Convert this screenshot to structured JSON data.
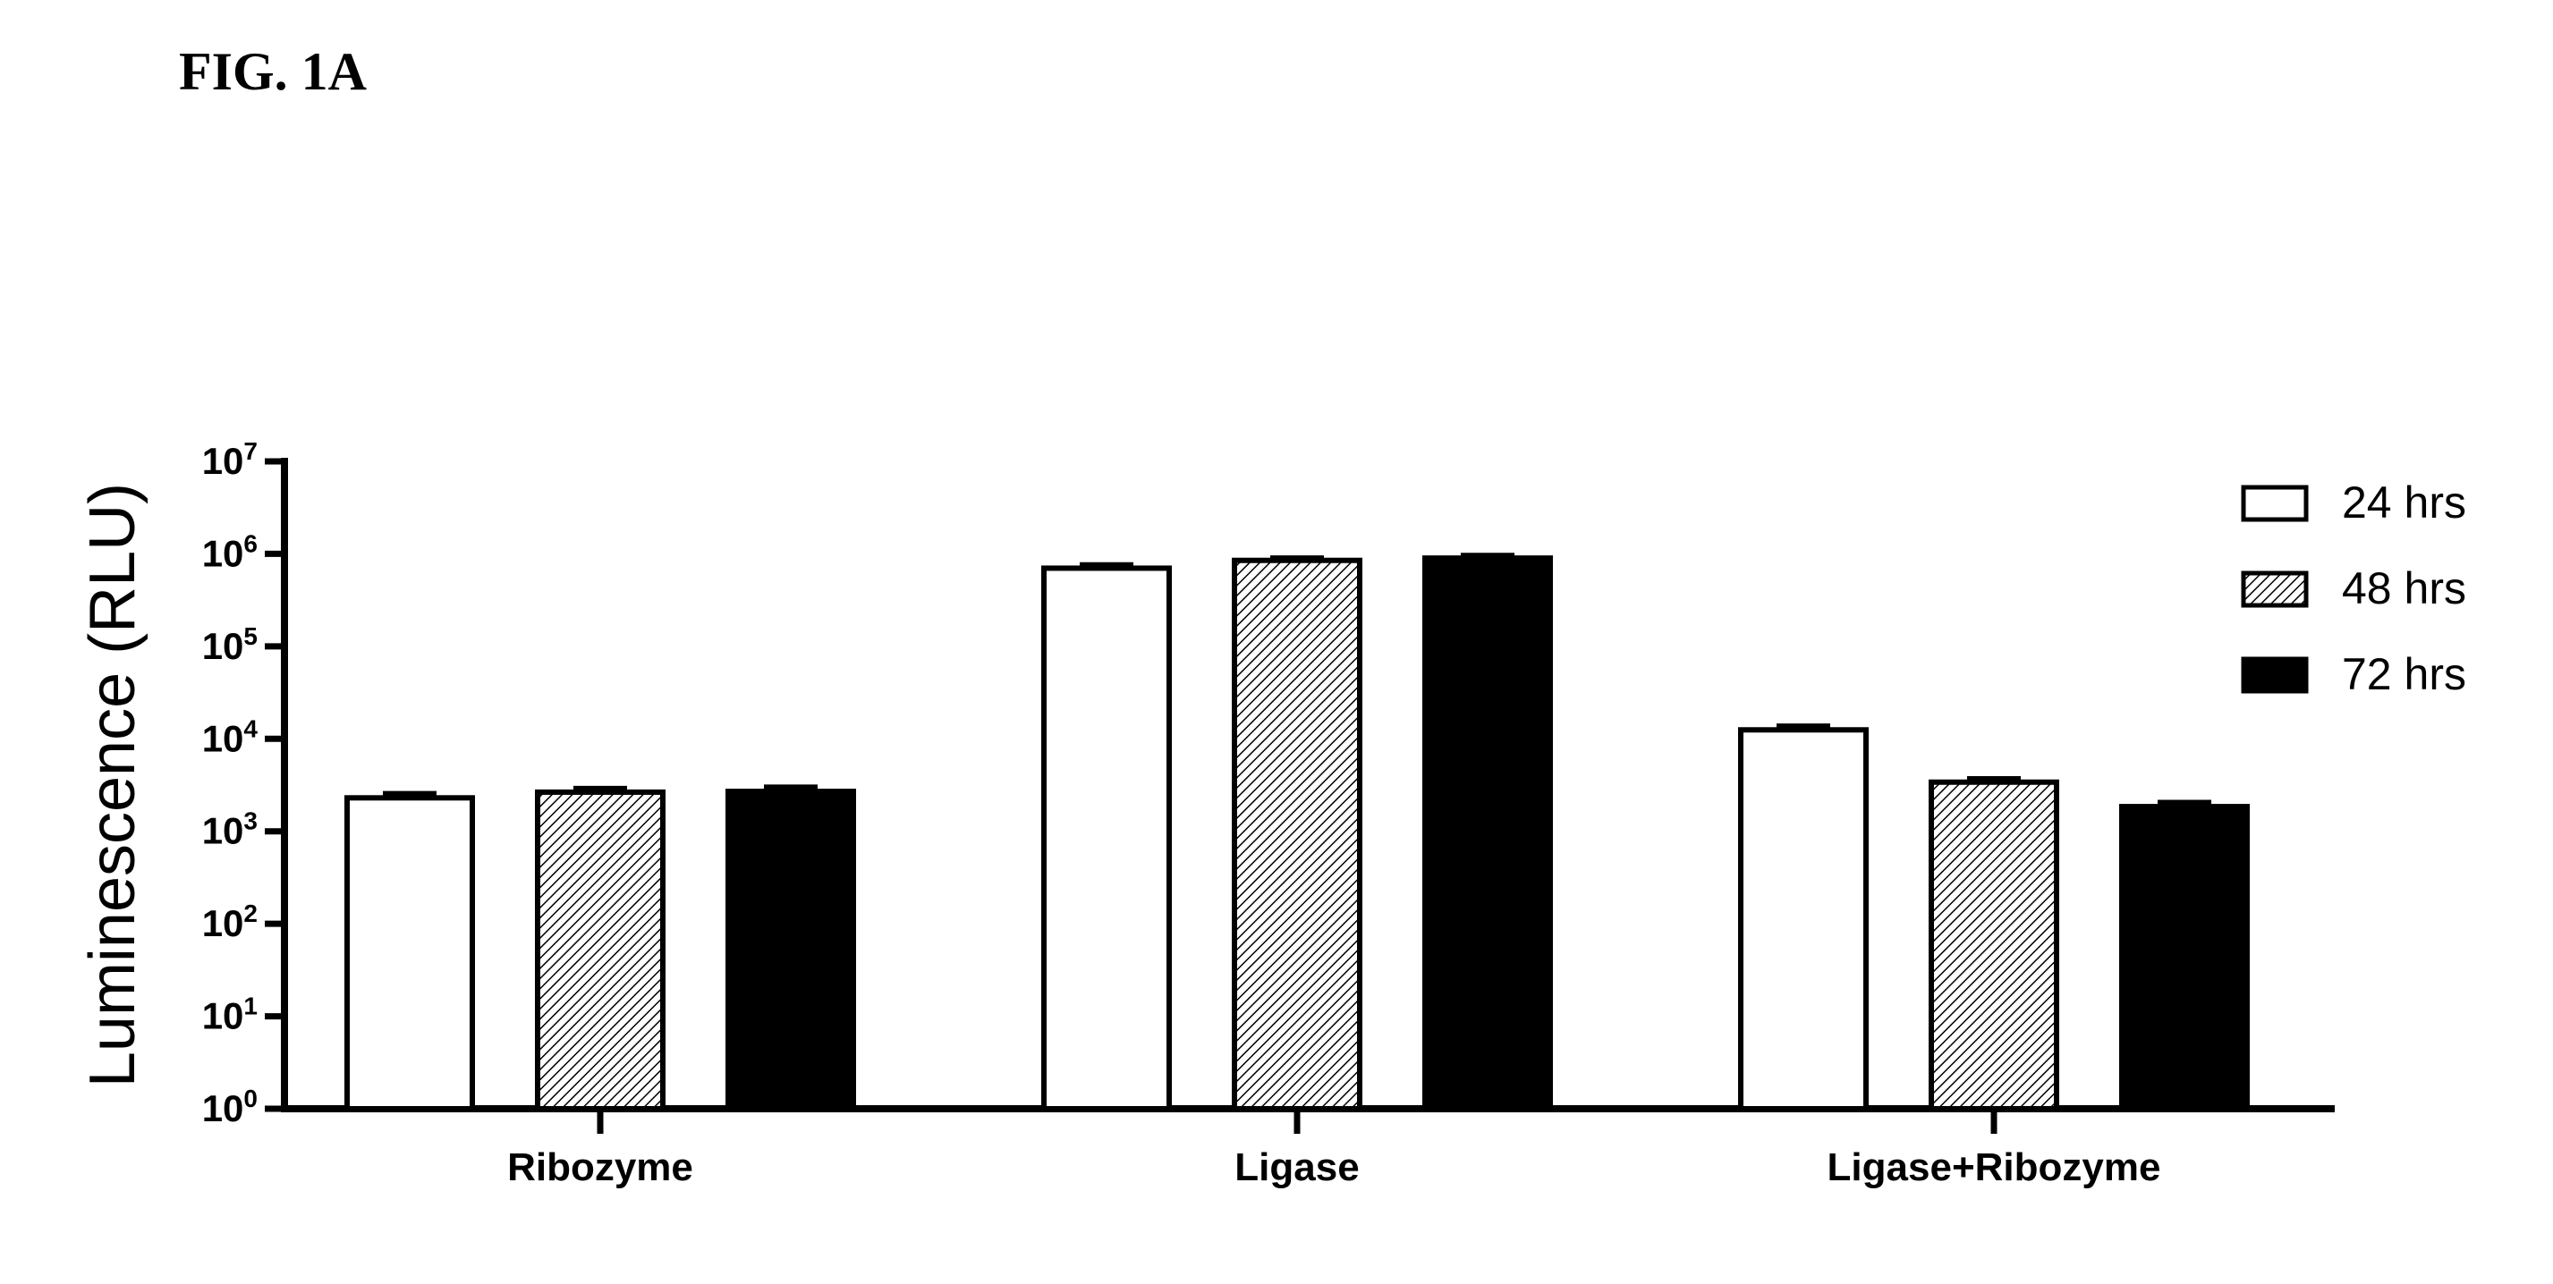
{
  "figure_label": "FIG. 1A",
  "chart_data": {
    "type": "bar",
    "yscale": "log",
    "ylabel": "Luminescence (RLU)",
    "xlabel": "",
    "ylim": [
      1,
      10000000
    ],
    "yticks": [
      {
        "base": "10",
        "exp": "0",
        "value": 1
      },
      {
        "base": "10",
        "exp": "1",
        "value": 10
      },
      {
        "base": "10",
        "exp": "2",
        "value": 100
      },
      {
        "base": "10",
        "exp": "3",
        "value": 1000
      },
      {
        "base": "10",
        "exp": "4",
        "value": 10000
      },
      {
        "base": "10",
        "exp": "5",
        "value": 100000
      },
      {
        "base": "10",
        "exp": "6",
        "value": 1000000
      },
      {
        "base": "10",
        "exp": "7",
        "value": 10000000
      }
    ],
    "categories": [
      "Ribozyme",
      "Ligase",
      "Ligase+Ribozyme"
    ],
    "series": [
      {
        "name": "24 hrs",
        "fill": "white",
        "values": [
          2300,
          700000,
          12500
        ],
        "errors": [
          250,
          60000,
          1200
        ]
      },
      {
        "name": "48 hrs",
        "fill": "hatched",
        "values": [
          2650,
          850000,
          3400
        ],
        "errors": [
          250,
          50000,
          300
        ]
      },
      {
        "name": "72 hrs",
        "fill": "black",
        "values": [
          2700,
          900000,
          1850
        ],
        "errors": [
          300,
          60000,
          200
        ]
      }
    ],
    "legend_position": "top-right",
    "grid": false
  }
}
